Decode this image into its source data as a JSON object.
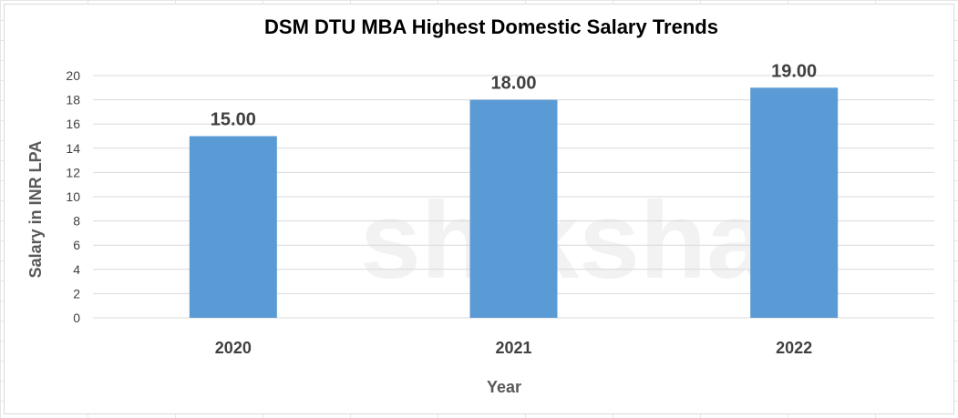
{
  "chart_data": {
    "type": "bar",
    "title": "DSM DTU MBA Highest Domestic Salary Trends",
    "xlabel": "Year",
    "ylabel": "Salary in INR LPA",
    "categories": [
      "2020",
      "2021",
      "2022"
    ],
    "values": [
      15,
      18,
      19
    ],
    "data_labels": [
      "15.00",
      "18.00",
      "19.00"
    ],
    "ylim": [
      0,
      20
    ],
    "yticks": [
      0,
      2,
      4,
      6,
      8,
      10,
      12,
      14,
      16,
      18,
      20
    ],
    "grid": true,
    "legend": "none",
    "bar_color": "#5B9BD5",
    "grid_color": "#d9d9d9"
  },
  "watermark": "shiksha"
}
